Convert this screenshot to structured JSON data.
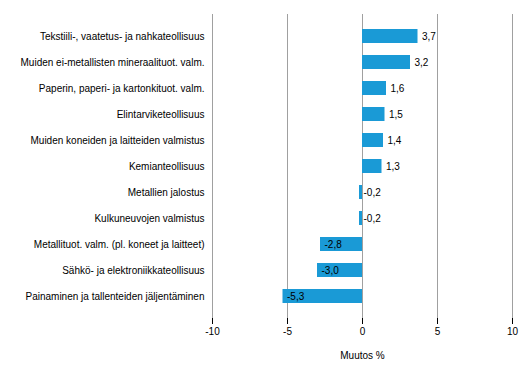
{
  "chart_data": {
    "type": "bar",
    "orientation": "horizontal",
    "categories": [
      "Tekstiili-, vaatetus- ja nahkateollisuus",
      "Muiden ei-metallisten mineraalituot. valm.",
      "Paperin, paperi- ja kartonkituot. valm.",
      "Elintarviketeollisuus",
      "Muiden koneiden ja laitteiden valmistus",
      "Kemianteollisuus",
      "Metallien jalostus",
      "Kulkuneuvojen valmistus",
      "Metallituot. valm. (pl. koneet ja laitteet)",
      "Sähkö- ja elektroniikkateollisuus",
      "Painaminen ja tallenteiden jäljentäminen"
    ],
    "values": [
      3.7,
      3.2,
      1.6,
      1.5,
      1.4,
      1.3,
      -0.2,
      -0.2,
      -2.8,
      -3.0,
      -5.3
    ],
    "value_labels": [
      "3,7",
      "3,2",
      "1,6",
      "1,5",
      "1,4",
      "1,3",
      "-0,2",
      "-0,2",
      "-2,8",
      "-3,0",
      "-5,3"
    ],
    "data_labels": true,
    "color": "#1a9ad6",
    "xlabel": "Muutos %",
    "xlim": [
      -10,
      10
    ],
    "xticks": [
      -10,
      -5,
      0,
      5,
      10
    ],
    "grid": true
  }
}
